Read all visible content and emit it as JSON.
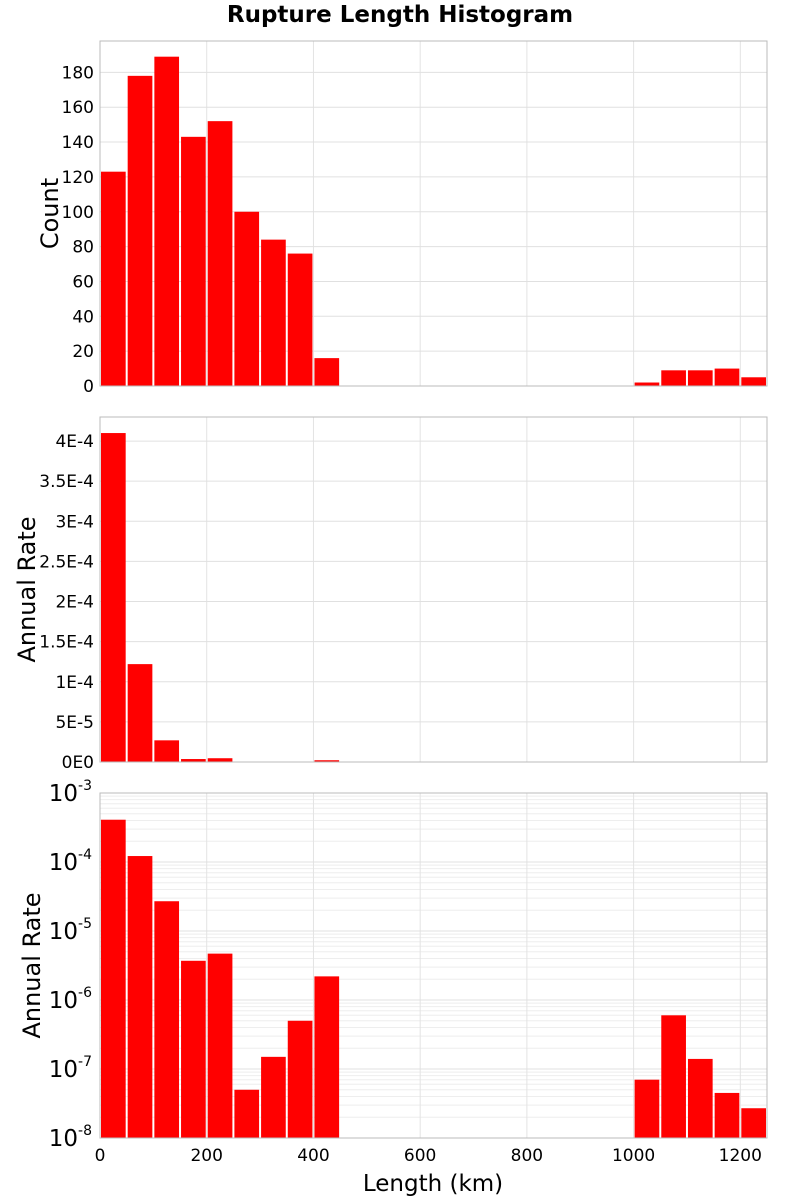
{
  "chart_data": {
    "title": "Rupture Length Histogram",
    "xlabel": "Length (km)",
    "xlim": [
      0,
      1250
    ],
    "bin_width": 50,
    "bar_color": "#ff0000",
    "grid": true,
    "x_ticks": [
      "0",
      "200",
      "400",
      "600",
      "800",
      "1000",
      "1200"
    ],
    "panels": [
      {
        "type": "bar",
        "scale": "linear",
        "ylabel": "Count",
        "ylim": [
          0,
          198
        ],
        "y_ticks": [
          "0",
          "20",
          "40",
          "60",
          "80",
          "100",
          "120",
          "140",
          "160",
          "180"
        ],
        "x": [
          25,
          75,
          125,
          175,
          225,
          275,
          325,
          375,
          425,
          1025,
          1075,
          1125,
          1175,
          1225
        ],
        "values": [
          123,
          178,
          189,
          143,
          152,
          100,
          84,
          76,
          16,
          2,
          9,
          9,
          10,
          5
        ]
      },
      {
        "type": "bar",
        "scale": "linear",
        "ylabel": "Annual Rate",
        "ylim": [
          0,
          0.00043
        ],
        "y_ticks": [
          "0E0",
          "5E-5",
          "1E-4",
          "1.5E-4",
          "2E-4",
          "2.5E-4",
          "3E-4",
          "3.5E-4",
          "4E-4"
        ],
        "x": [
          25,
          75,
          125,
          175,
          225,
          275,
          325,
          375,
          425,
          1025,
          1075,
          1125,
          1175,
          1225
        ],
        "values": [
          0.00041,
          0.000122,
          2.7e-05,
          3.7e-06,
          4.7e-06,
          5e-08,
          1.5e-07,
          5e-07,
          2.2e-06,
          7e-08,
          6e-07,
          1.4e-07,
          4.5e-08,
          2.7e-08
        ]
      },
      {
        "type": "bar",
        "scale": "log",
        "ylabel": "Annual Rate",
        "ylim": [
          1e-08,
          0.001
        ],
        "y_ticks": [
          {
            "base": "10",
            "exp": "-8"
          },
          {
            "base": "10",
            "exp": "-7"
          },
          {
            "base": "10",
            "exp": "-6"
          },
          {
            "base": "10",
            "exp": "-5"
          },
          {
            "base": "10",
            "exp": "-4"
          },
          {
            "base": "10",
            "exp": "-3"
          }
        ],
        "x": [
          25,
          75,
          125,
          175,
          225,
          275,
          325,
          375,
          425,
          1025,
          1075,
          1125,
          1175,
          1225
        ],
        "values": [
          0.00041,
          0.000122,
          2.7e-05,
          3.7e-06,
          4.7e-06,
          5e-08,
          1.5e-07,
          5e-07,
          2.2e-06,
          7e-08,
          6e-07,
          1.4e-07,
          4.5e-08,
          2.7e-08
        ]
      }
    ]
  }
}
